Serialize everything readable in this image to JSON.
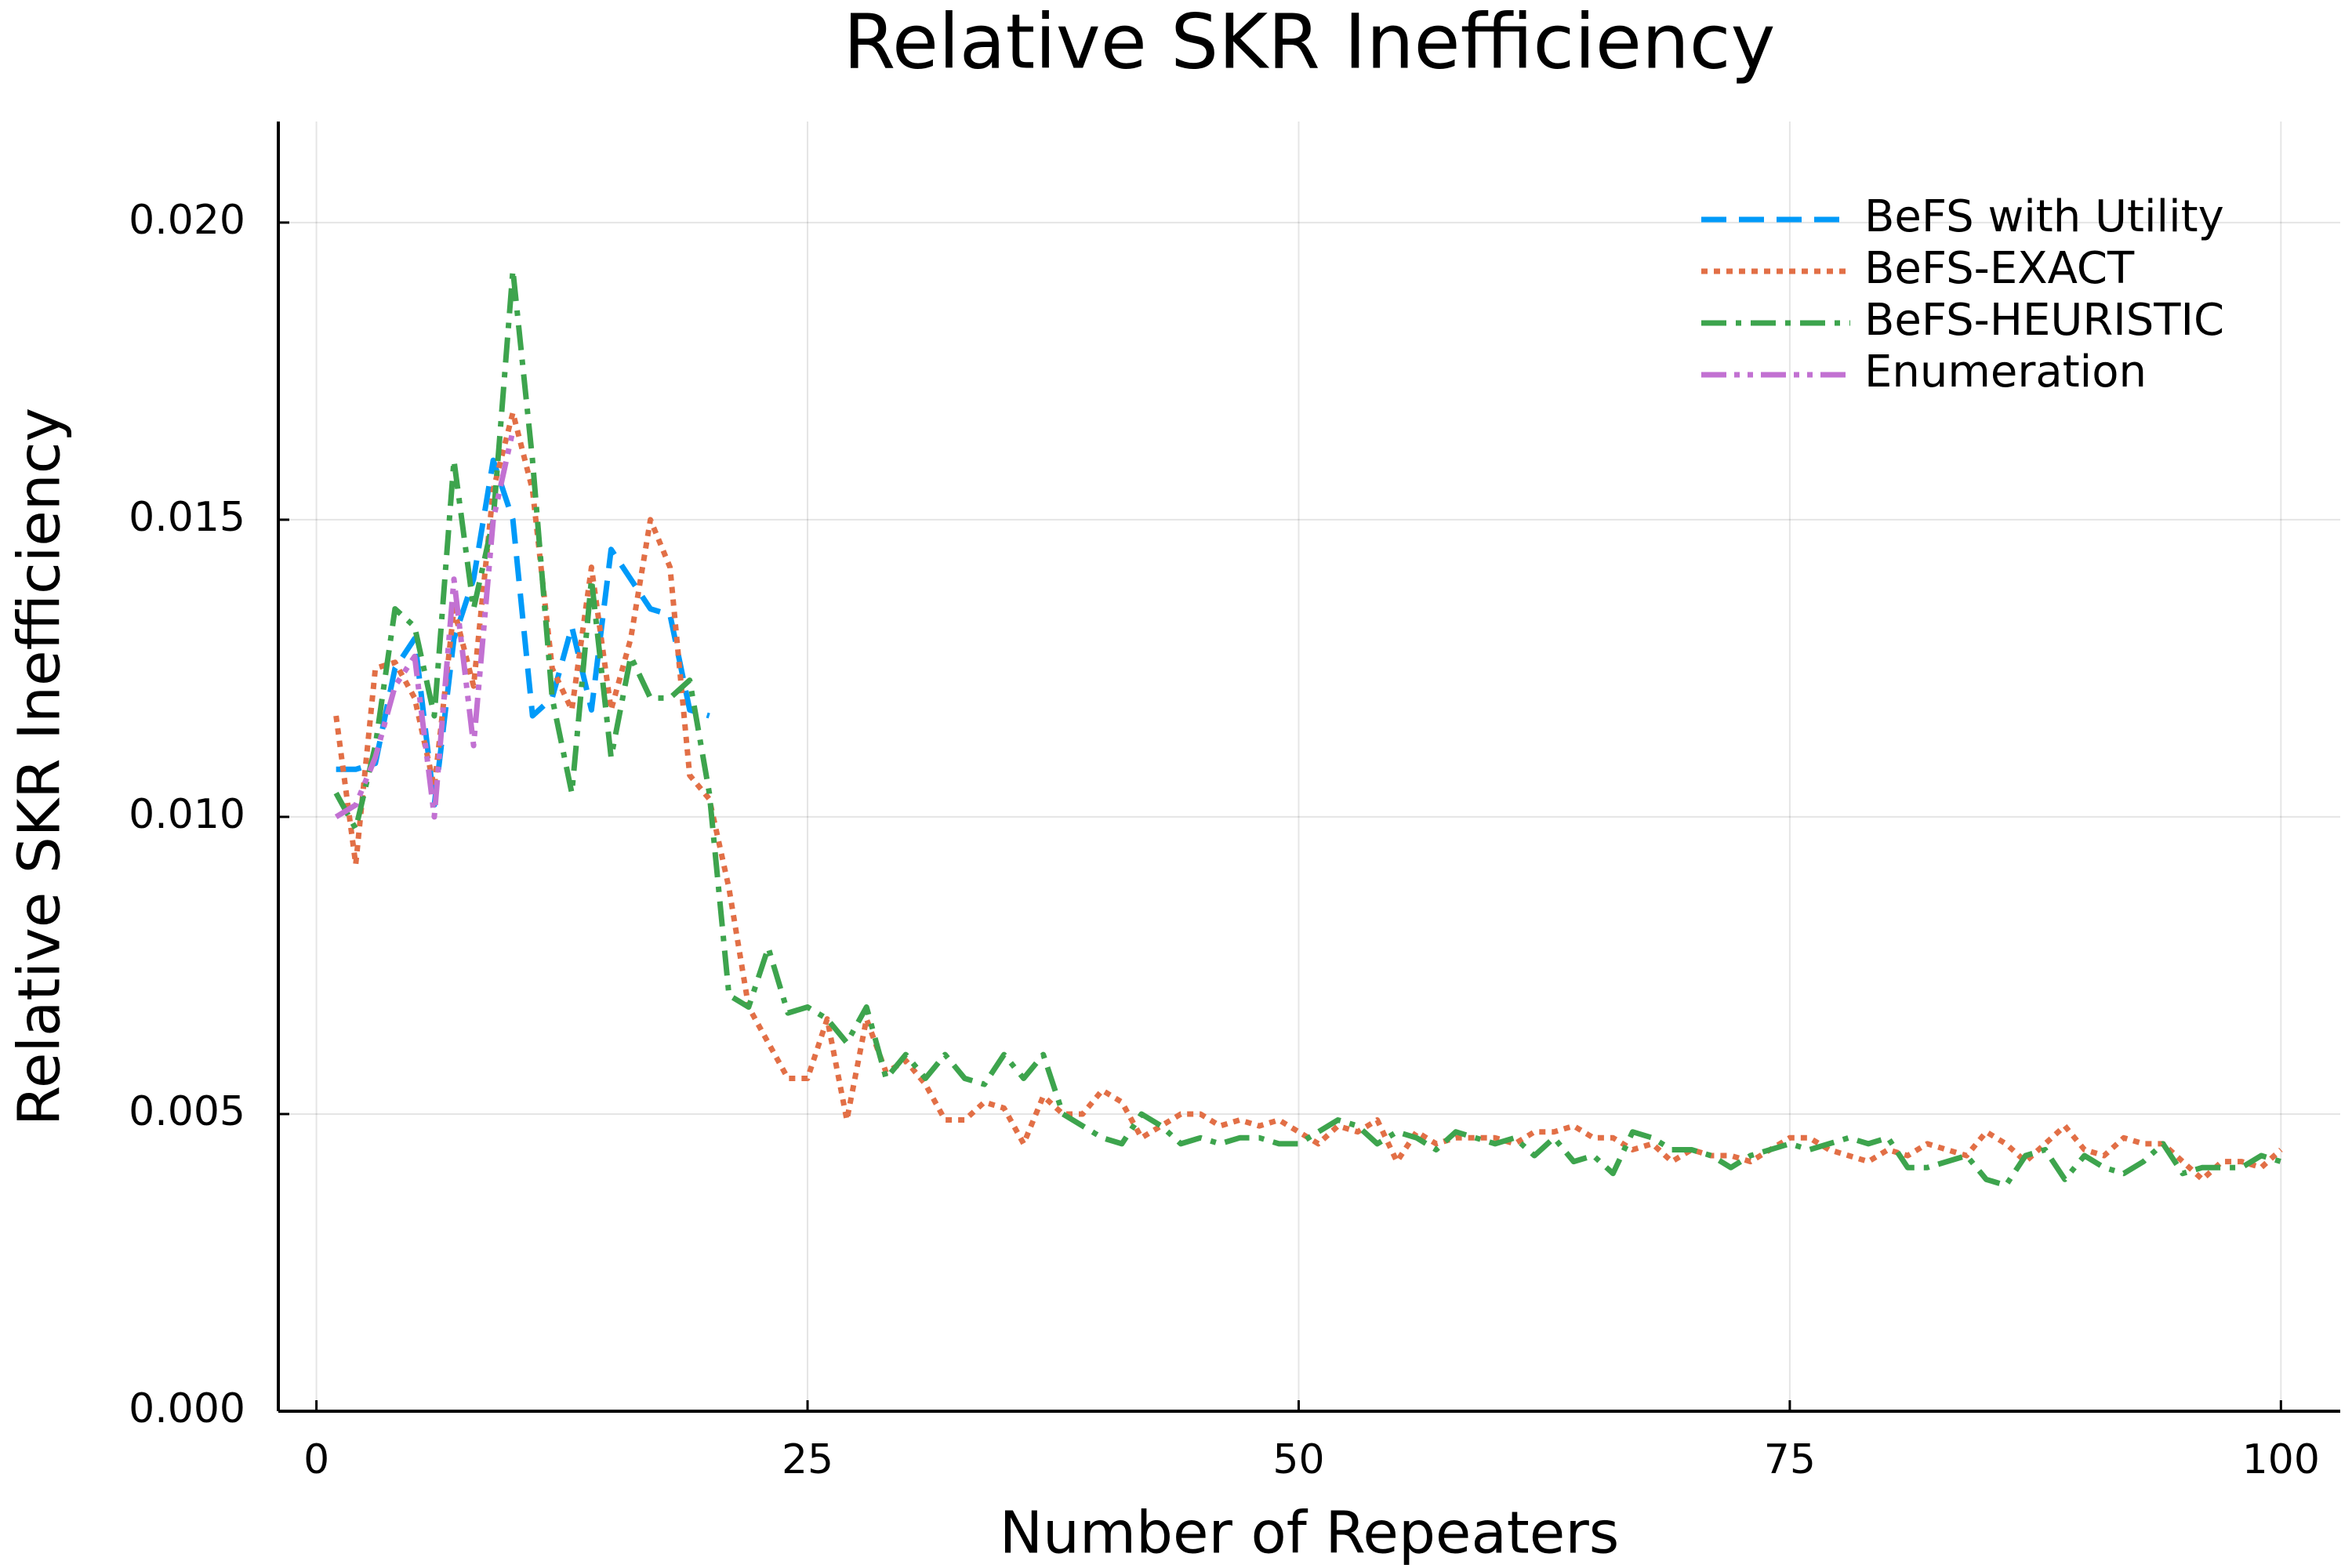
{
  "chart_data": {
    "type": "line",
    "title": "Relative SKR Inefficiency",
    "x_label": "Number of Repeaters",
    "y_label": "Relative SKR Inefficiency",
    "xlim": [
      -1.94,
      103.02
    ],
    "ylim": [
      0,
      0.0217
    ],
    "xticks": [
      0,
      25,
      50,
      75,
      100
    ],
    "yticks": [
      {
        "value": 0,
        "label": "0.000"
      },
      {
        "value": 0.005,
        "label": "0.005"
      },
      {
        "value": 0.01,
        "label": "0.010"
      },
      {
        "value": 0.015,
        "label": "0.015"
      },
      {
        "value": 0.02,
        "label": "0.020"
      }
    ],
    "grid": true,
    "legend": "top-right",
    "series": [
      {
        "name": "BeFS with Utility",
        "color": "#009af9",
        "dash": "32,16",
        "x": [
          1,
          2,
          3,
          4,
          5,
          6,
          7,
          8,
          9,
          10,
          11,
          12,
          13,
          14,
          15,
          16,
          17,
          18,
          19,
          20
        ],
        "values": [
          0.0108,
          0.0108,
          0.0109,
          0.0125,
          0.013,
          0.0102,
          0.013,
          0.014,
          0.016,
          0.015,
          0.0117,
          0.012,
          0.0132,
          0.0118,
          0.0145,
          0.014,
          0.0135,
          0.0134,
          0.0118,
          0.0117
        ]
      },
      {
        "name": "BeFS-EXACT",
        "color": "#e26f46",
        "dash": "8,8",
        "x": [
          1,
          2,
          3,
          4,
          5,
          6,
          7,
          8,
          9,
          10,
          11,
          12,
          13,
          14,
          15,
          16,
          17,
          18,
          19,
          20,
          21,
          22,
          23,
          24,
          25,
          26,
          27,
          28,
          29,
          30,
          31,
          32,
          33,
          34,
          35,
          36,
          37,
          38,
          39,
          40,
          41,
          42,
          43,
          44,
          45,
          46,
          47,
          48,
          49,
          50,
          51,
          52,
          53,
          54,
          55,
          56,
          57,
          58,
          59,
          60,
          61,
          62,
          63,
          64,
          65,
          66,
          67,
          68,
          69,
          70,
          71,
          72,
          73,
          74,
          75,
          76,
          77,
          78,
          79,
          80,
          81,
          82,
          83,
          84,
          85,
          86,
          87,
          88,
          89,
          90,
          91,
          92,
          93,
          94,
          95,
          96,
          97,
          98,
          99,
          100
        ],
        "values": [
          0.0117,
          0.0092,
          0.0125,
          0.0126,
          0.012,
          0.0105,
          0.0135,
          0.0122,
          0.0155,
          0.0168,
          0.0155,
          0.0125,
          0.0118,
          0.0142,
          0.0118,
          0.013,
          0.015,
          0.0142,
          0.0107,
          0.0103,
          0.0088,
          0.0068,
          0.0062,
          0.0056,
          0.0056,
          0.0066,
          0.0049,
          0.0066,
          0.0057,
          0.0059,
          0.0055,
          0.0049,
          0.0049,
          0.0052,
          0.0051,
          0.0045,
          0.0053,
          0.005,
          0.005,
          0.0054,
          0.0052,
          0.0046,
          0.0048,
          0.005,
          0.005,
          0.0048,
          0.0049,
          0.0048,
          0.0049,
          0.0047,
          0.0045,
          0.0048,
          0.0047,
          0.0049,
          0.0042,
          0.0047,
          0.0045,
          0.0046,
          0.0046,
          0.0046,
          0.0045,
          0.0047,
          0.0047,
          0.0048,
          0.0046,
          0.0046,
          0.0044,
          0.0045,
          0.0042,
          0.0044,
          0.0043,
          0.0043,
          0.0042,
          0.0044,
          0.0046,
          0.0046,
          0.0044,
          0.0043,
          0.0042,
          0.0044,
          0.0043,
          0.0045,
          0.0044,
          0.0043,
          0.0047,
          0.0045,
          0.0042,
          0.0045,
          0.0048,
          0.0044,
          0.0043,
          0.0046,
          0.0045,
          0.0045,
          0.0042,
          0.0039,
          0.0042,
          0.0042,
          0.0041,
          0.0044
        ]
      },
      {
        "name": "BeFS-HEURISTIC",
        "color": "#3da44d",
        "dash": "32,12,7,12",
        "x": [
          1,
          2,
          3,
          4,
          5,
          6,
          7,
          8,
          9,
          10,
          11,
          12,
          13,
          14,
          15,
          16,
          17,
          18,
          19,
          20,
          21,
          22,
          23,
          24,
          25,
          26,
          27,
          28,
          29,
          30,
          31,
          32,
          33,
          34,
          35,
          36,
          37,
          38,
          39,
          40,
          41,
          42,
          43,
          44,
          45,
          46,
          47,
          48,
          49,
          50,
          51,
          52,
          53,
          54,
          55,
          56,
          57,
          58,
          59,
          60,
          61,
          62,
          63,
          64,
          65,
          66,
          67,
          68,
          69,
          70,
          71,
          72,
          73,
          74,
          75,
          76,
          77,
          78,
          79,
          80,
          81,
          82,
          83,
          84,
          85,
          86,
          87,
          88,
          89,
          90,
          91,
          92,
          93,
          94,
          95,
          96,
          97,
          98,
          99,
          100
        ],
        "values": [
          0.0104,
          0.0098,
          0.0112,
          0.0135,
          0.0132,
          0.0117,
          0.016,
          0.0135,
          0.015,
          0.0192,
          0.016,
          0.012,
          0.0104,
          0.014,
          0.011,
          0.0127,
          0.012,
          0.012,
          0.0123,
          0.0104,
          0.007,
          0.0068,
          0.0078,
          0.0067,
          0.0068,
          0.0066,
          0.0062,
          0.0068,
          0.0056,
          0.006,
          0.0056,
          0.006,
          0.0056,
          0.0055,
          0.006,
          0.0056,
          0.006,
          0.005,
          0.0048,
          0.0046,
          0.0045,
          0.005,
          0.0048,
          0.0045,
          0.0046,
          0.0045,
          0.0046,
          0.0046,
          0.0045,
          0.0045,
          0.0047,
          0.0049,
          0.0048,
          0.0045,
          0.0047,
          0.0046,
          0.0044,
          0.0047,
          0.0046,
          0.0045,
          0.0046,
          0.0043,
          0.0046,
          0.0042,
          0.0043,
          0.004,
          0.0047,
          0.0046,
          0.0044,
          0.0044,
          0.0043,
          0.0041,
          0.0043,
          0.0044,
          0.0045,
          0.0044,
          0.0045,
          0.0046,
          0.0045,
          0.0046,
          0.0041,
          0.0041,
          0.0042,
          0.0043,
          0.0039,
          0.0038,
          0.0043,
          0.0044,
          0.0039,
          0.0043,
          0.0041,
          0.004,
          0.0042,
          0.0045,
          0.004,
          0.0041,
          0.0041,
          0.0041,
          0.0043,
          0.0042
        ]
      },
      {
        "name": "Enumeration",
        "color": "#c271d2",
        "dash": "32,10,7,10,7,10",
        "x": [
          1,
          2,
          3,
          4,
          5,
          6,
          7,
          8,
          9,
          10
        ],
        "values": [
          0.01,
          0.0102,
          0.011,
          0.0122,
          0.0127,
          0.01,
          0.014,
          0.0112,
          0.015,
          0.0165
        ]
      }
    ]
  }
}
